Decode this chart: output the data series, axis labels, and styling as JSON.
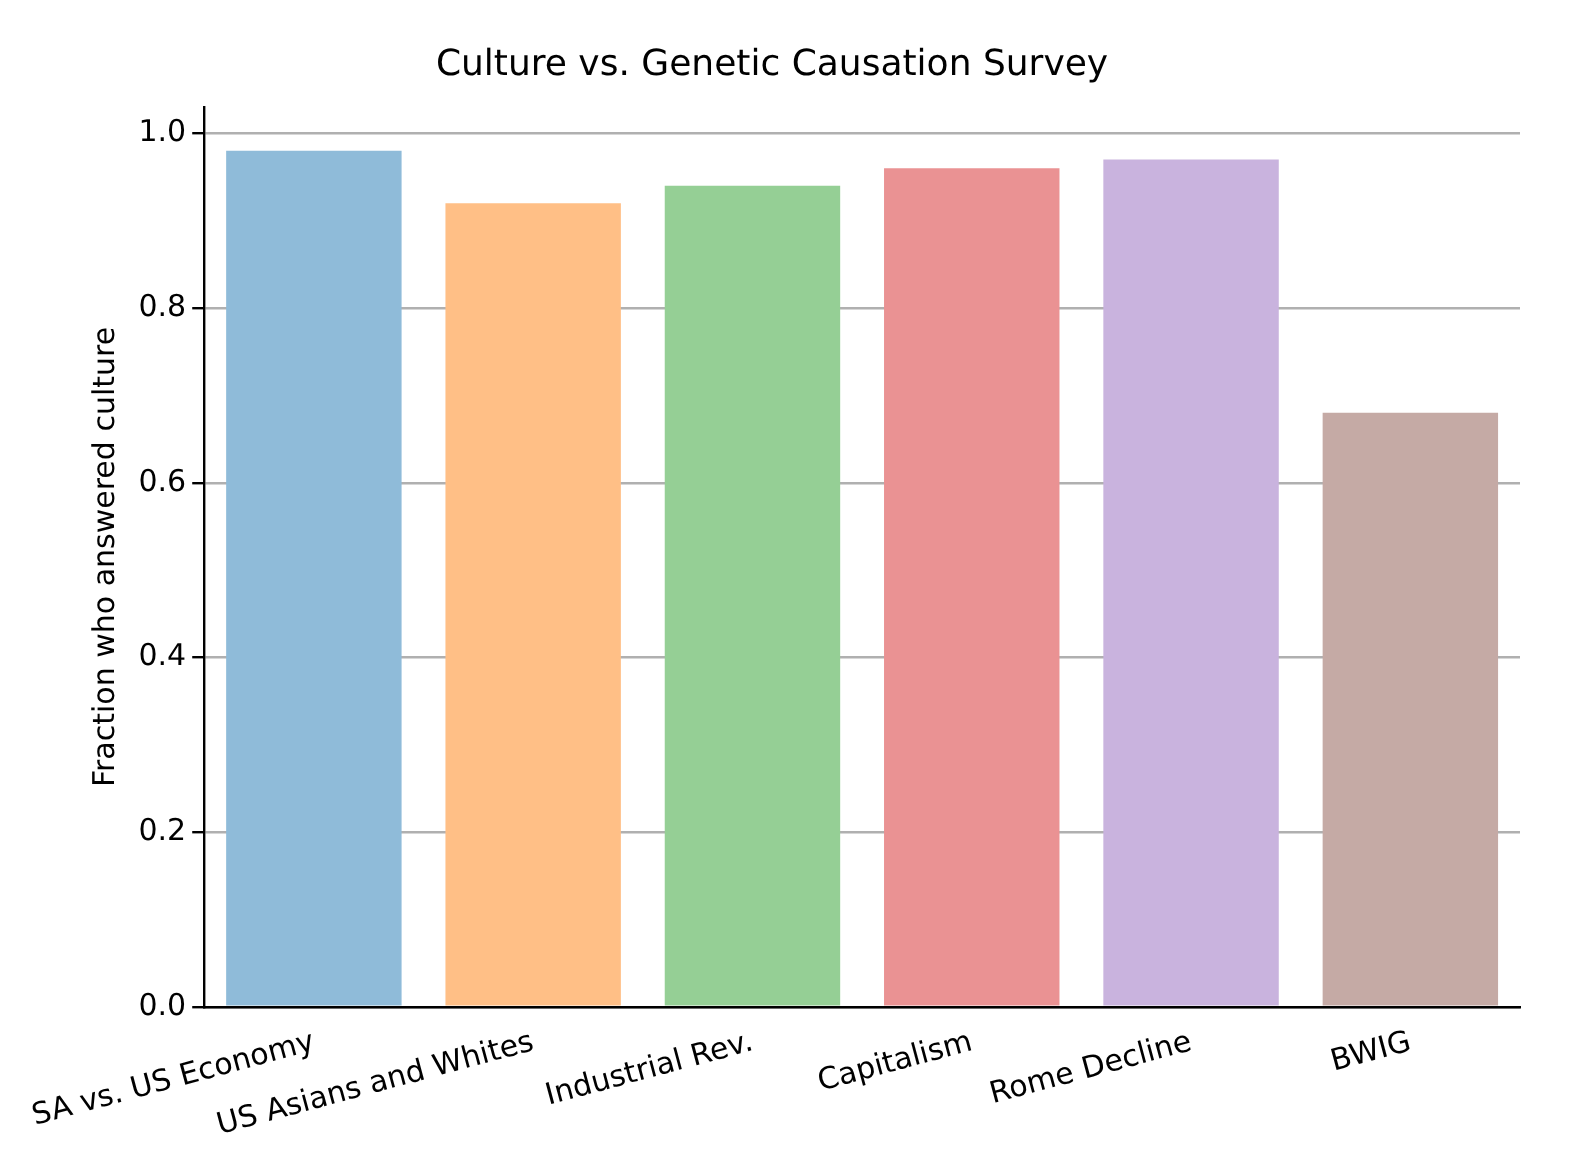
{
  "chart_data": {
    "type": "bar",
    "title": "Culture vs. Genetic Causation Survey",
    "ylabel": "Fraction who answered culture",
    "categories": [
      "SA vs. US Economy",
      "US Asians and Whites",
      "Industrial Rev.",
      "Capitalism",
      "Rome Decline",
      "BWIG"
    ],
    "values": [
      0.98,
      0.92,
      0.94,
      0.96,
      0.97,
      0.68
    ],
    "colors": [
      "#8fbbd9",
      "#ffbf86",
      "#95cf95",
      "#ea9293",
      "#c9b3de",
      "#c5aaa5"
    ],
    "ylim": [
      0,
      1.03
    ],
    "yticks": [
      {
        "value": 0,
        "label": "0.0"
      },
      0.2,
      0.4,
      0.6,
      0.8,
      {
        "value": 1,
        "label": "1.0"
      }
    ],
    "grid": "y",
    "legend": false
  }
}
